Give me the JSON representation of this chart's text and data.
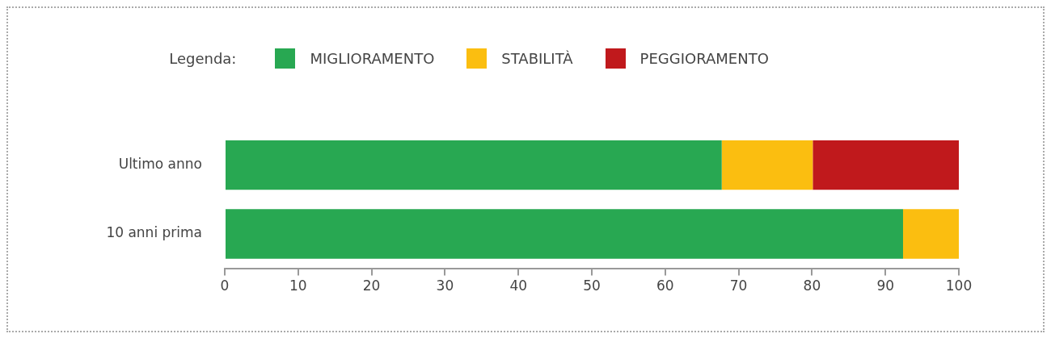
{
  "chart_data": {
    "type": "bar",
    "orientation": "horizontal",
    "stacked": true,
    "legend_title": "Legenda:",
    "legend": "top",
    "grid": false,
    "categories": [
      "Ultimo anno",
      "10 anni prima"
    ],
    "series": [
      {
        "name": "MIGLIORAMENTO",
        "color": "#28a852",
        "values": [
          67.7,
          92.4
        ]
      },
      {
        "name": "STABILITÀ",
        "color": "#fbbe10",
        "values": [
          12.4,
          7.6
        ]
      },
      {
        "name": "PEGGIORAMENTO",
        "color": "#c0191c",
        "values": [
          19.9,
          0
        ]
      }
    ],
    "xlim": [
      0,
      100
    ],
    "xticks": [
      0,
      10,
      20,
      30,
      40,
      50,
      60,
      70,
      80,
      90,
      100
    ]
  }
}
